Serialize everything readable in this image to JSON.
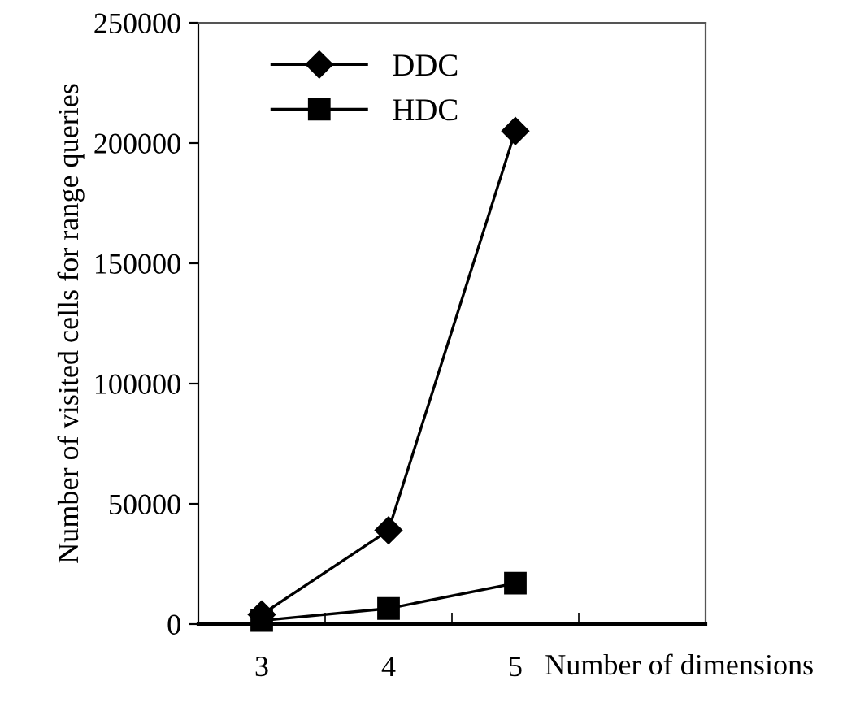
{
  "chart_data": {
    "type": "line",
    "xlabel": "Number of dimensions",
    "ylabel": "Number of visited cells for range queries",
    "categories": [
      "3",
      "4",
      "5",
      null
    ],
    "series": [
      {
        "name": "DDC",
        "color": "#000000",
        "marker": "diamond",
        "values": [
          4000,
          39000,
          205000,
          null
        ]
      },
      {
        "name": "HDC",
        "color": "#000000",
        "marker": "square",
        "values": [
          1500,
          6500,
          17000,
          null
        ]
      }
    ],
    "ylim": [
      0,
      250000
    ],
    "yticks": [
      0,
      50000,
      100000,
      150000,
      200000,
      250000
    ],
    "grid": false,
    "legend": "top left",
    "line_style": "solid"
  }
}
